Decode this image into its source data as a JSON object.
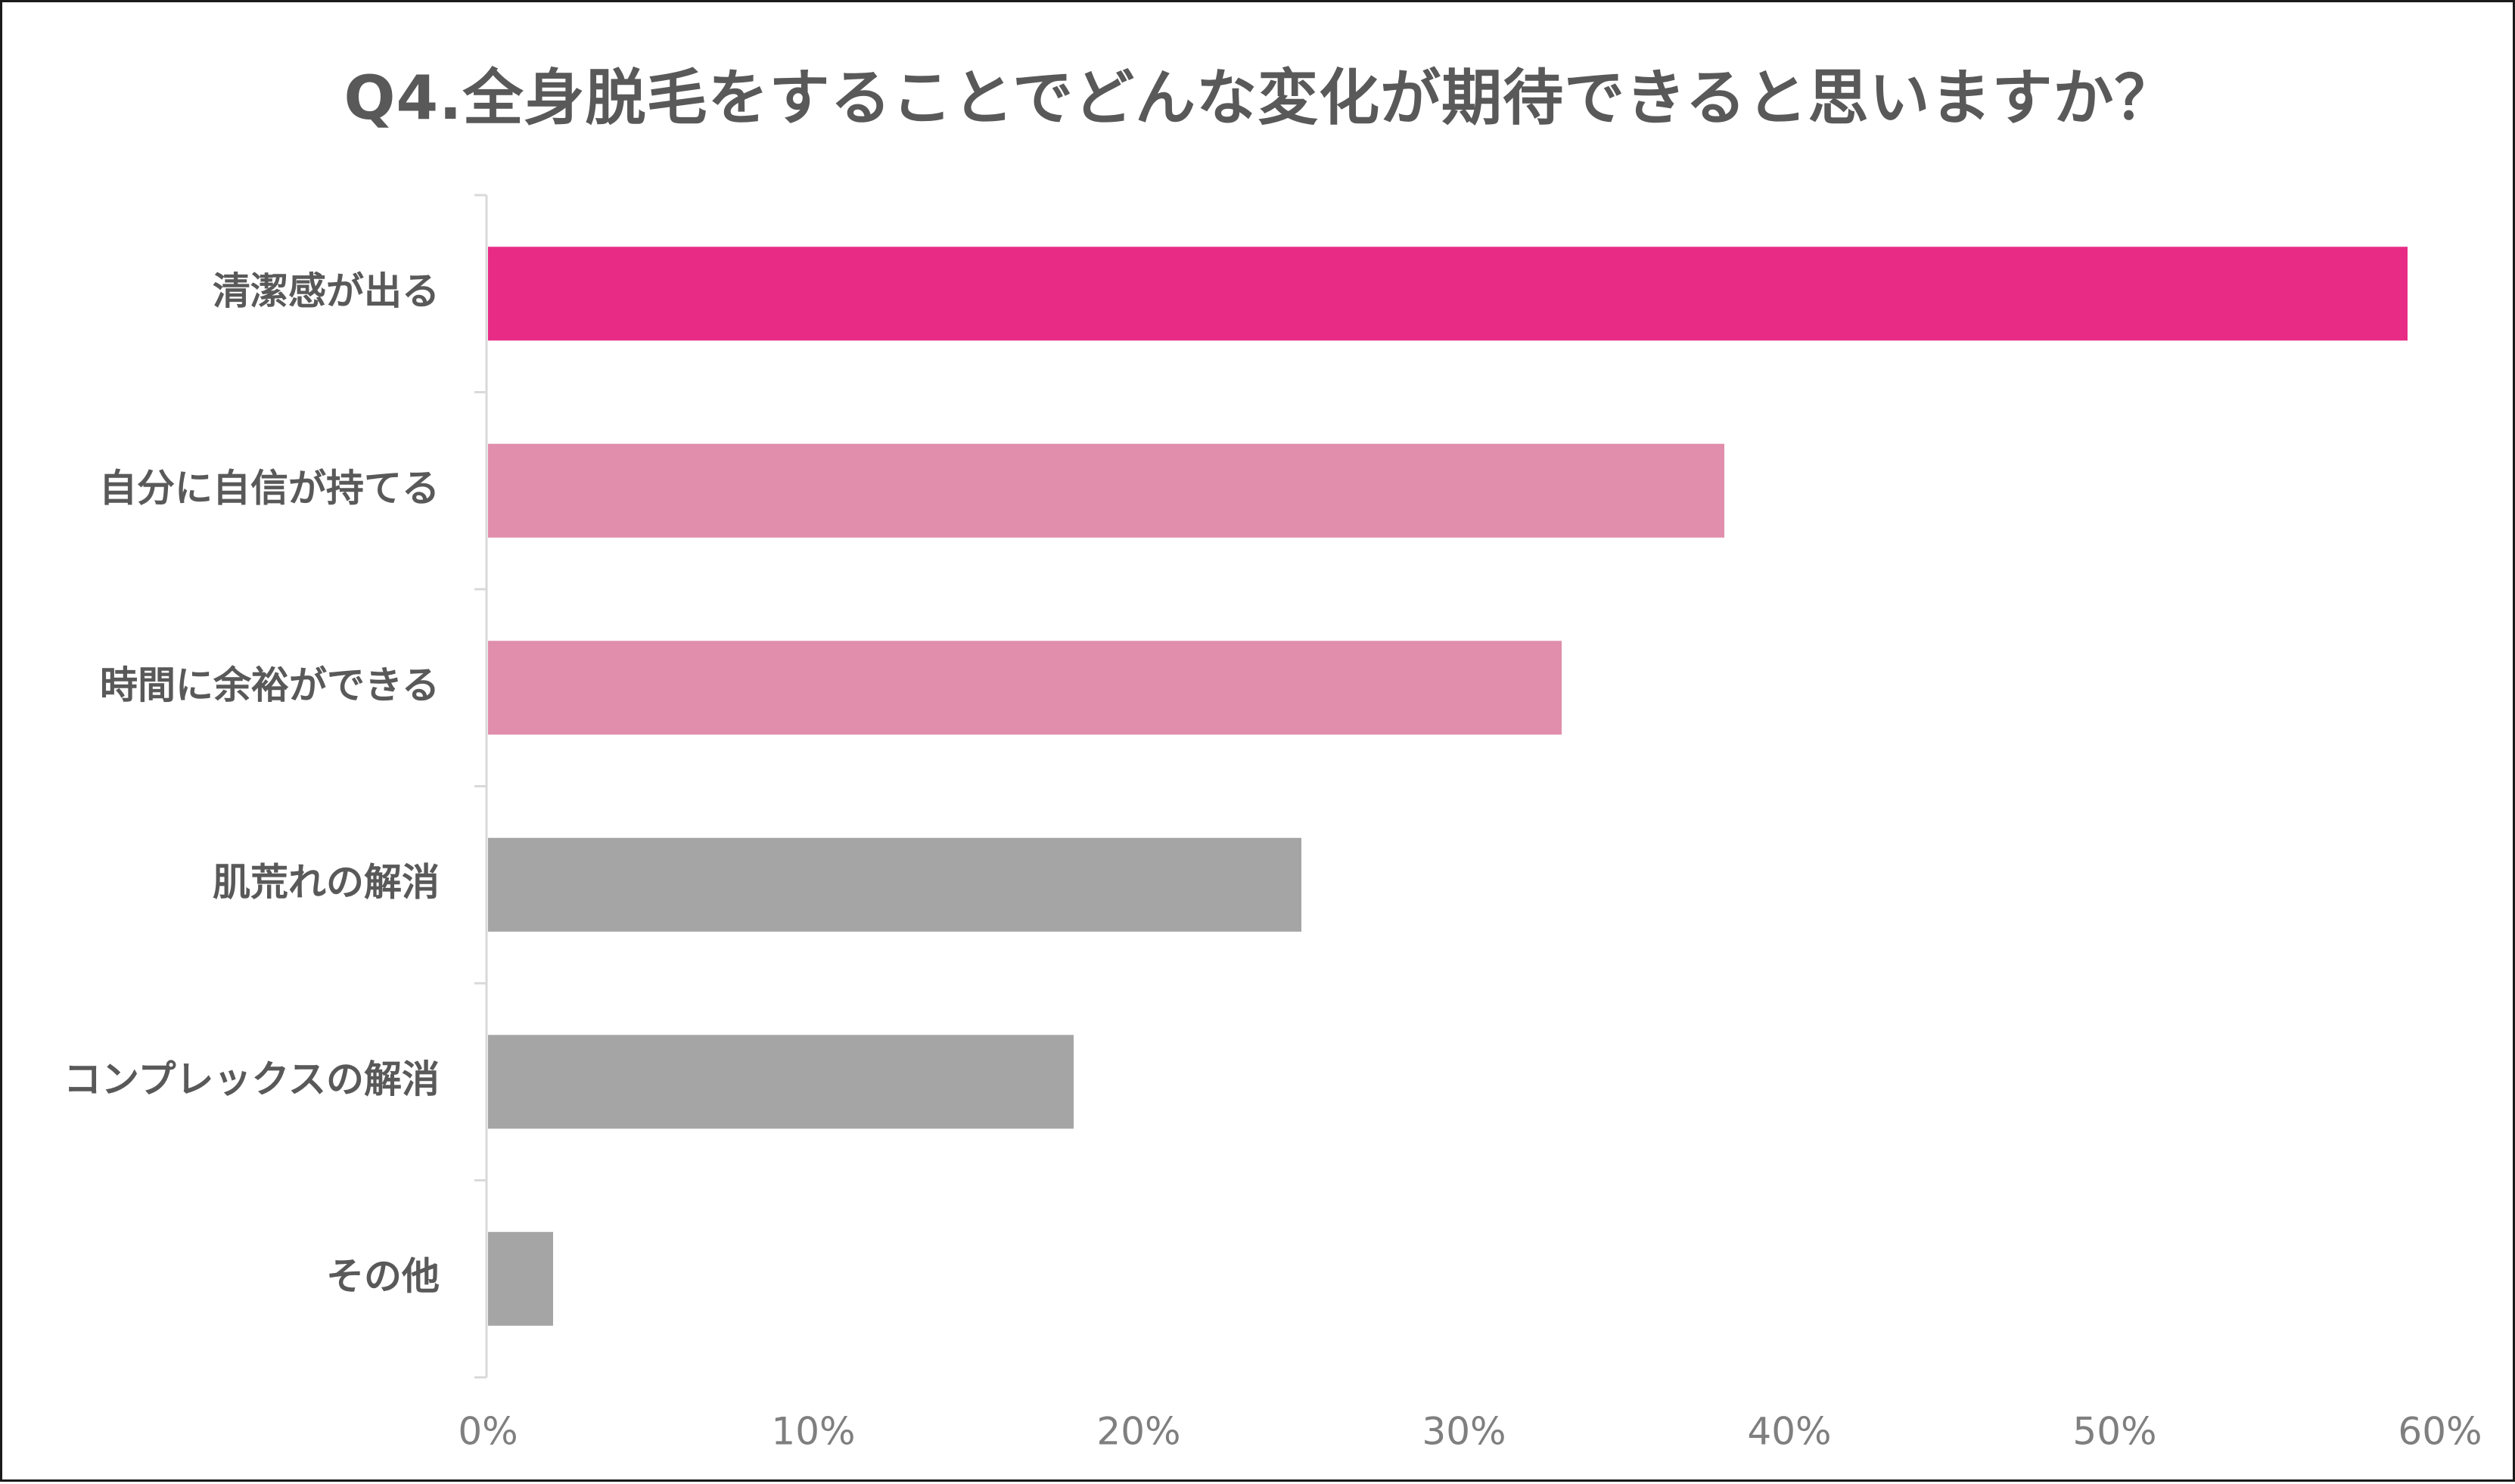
{
  "chart_data": {
    "type": "bar",
    "orientation": "horizontal",
    "title": "Q4.全身脱毛をすることでどんな変化が期待できると思いますか？",
    "xlabel": "",
    "ylabel": "",
    "categories": [
      "清潔感が出る",
      "自分に自信が持てる",
      "時間に余裕ができる",
      "肌荒れの解消",
      "コンプレックスの解消",
      "その他"
    ],
    "values": [
      59,
      38,
      33,
      25,
      18,
      2
    ],
    "bar_colors": [
      "#e82c86",
      "#e08eac",
      "#e08eac",
      "#a5a5a5",
      "#a5a5a5",
      "#a5a5a5"
    ],
    "xlim": [
      0,
      60
    ],
    "x_ticks": [
      0,
      10,
      20,
      30,
      40,
      50,
      60
    ],
    "x_tick_labels": [
      "0%",
      "10%",
      "20%",
      "30%",
      "40%",
      "50%",
      "60%"
    ],
    "grid": false,
    "legend": "none"
  }
}
